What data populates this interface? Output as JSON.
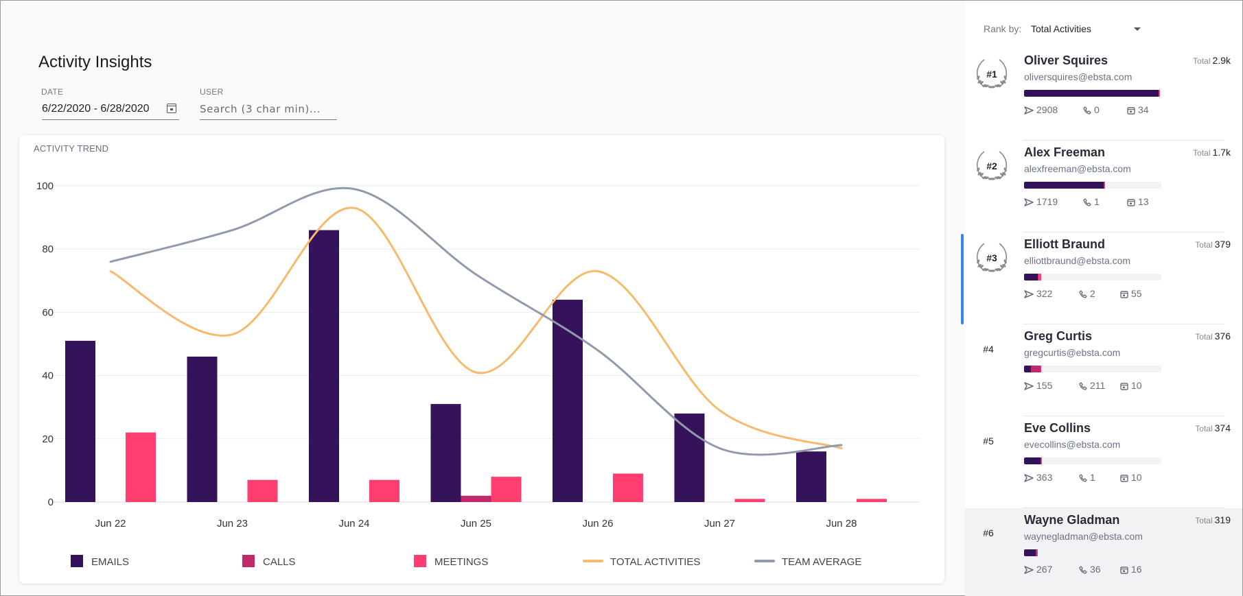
{
  "page": {
    "title": "Activity Insights"
  },
  "filters": {
    "date_label": "DATE",
    "date_value": "6/22/2020 - 6/28/2020",
    "user_label": "USER",
    "user_placeholder": "Search (3 char min)..."
  },
  "card": {
    "title": "ACTIVITY TREND"
  },
  "colors": {
    "emails": "#35135a",
    "calls": "#c0296a",
    "meetings": "#ff3d6e",
    "total": "#f7b96b",
    "team_average": "#9199ad",
    "active_row": "#3b82f6"
  },
  "chart_data": {
    "type": "bar",
    "title": "ACTIVITY TREND",
    "categories": [
      "Jun 22",
      "Jun 23",
      "Jun 24",
      "Jun 25",
      "Jun 26",
      "Jun 27",
      "Jun 28"
    ],
    "ylim": [
      0,
      100
    ],
    "yticks": [
      0,
      20,
      40,
      60,
      80,
      100
    ],
    "grid": true,
    "legend_position": "bottom",
    "series": [
      {
        "name": "EMAILS",
        "type": "bar",
        "values": [
          51,
          46,
          86,
          31,
          64,
          28,
          16
        ]
      },
      {
        "name": "CALLS",
        "type": "bar",
        "values": [
          0,
          0,
          0,
          2,
          0,
          0,
          0
        ]
      },
      {
        "name": "MEETINGS",
        "type": "bar",
        "values": [
          22,
          7,
          7,
          8,
          9,
          1,
          1
        ]
      },
      {
        "name": "TOTAL ACTIVITIES",
        "type": "line",
        "values": [
          73,
          53,
          93,
          41,
          73,
          29,
          17
        ]
      },
      {
        "name": "TEAM AVERAGE",
        "type": "line",
        "values": [
          76,
          86,
          99,
          72,
          48,
          17,
          18
        ]
      }
    ]
  },
  "ranking": {
    "label": "Rank by:",
    "selected": "Total Activities",
    "total_label": "Total",
    "users": [
      {
        "rank": "#1",
        "name": "Oliver Squires",
        "email": "oliversquires@ebsta.com",
        "total": "2.9k",
        "emails": "2908",
        "calls": "0",
        "meetings": "34",
        "bar": [
          0.98,
          0,
          0.012
        ]
      },
      {
        "rank": "#2",
        "name": "Alex Freeman",
        "email": "alexfreeman@ebsta.com",
        "total": "1.7k",
        "emails": "1719",
        "calls": "1",
        "meetings": "13",
        "bar": [
          0.58,
          0.003,
          0.006
        ]
      },
      {
        "rank": "#3",
        "name": "Elliott Braund",
        "email": "elliottbraund@ebsta.com",
        "total": "379",
        "emails": "322",
        "calls": "2",
        "meetings": "55",
        "bar": [
          0.1,
          0.005,
          0.02
        ]
      },
      {
        "rank": "#4",
        "name": "Greg Curtis",
        "email": "gregcurtis@ebsta.com",
        "total": "376",
        "emails": "155",
        "calls": "211",
        "meetings": "10",
        "bar": [
          0.05,
          0.07,
          0.005
        ]
      },
      {
        "rank": "#5",
        "name": "Eve Collins",
        "email": "evecollins@ebsta.com",
        "total": "374",
        "emails": "363",
        "calls": "1",
        "meetings": "10",
        "bar": [
          0.12,
          0.003,
          0.005
        ]
      },
      {
        "rank": "#6",
        "name": "Wayne Gladman",
        "email": "waynegladman@ebsta.com",
        "total": "319",
        "emails": "267",
        "calls": "36",
        "meetings": "16",
        "bar": [
          0.085,
          0.012,
          0.005
        ]
      }
    ]
  }
}
